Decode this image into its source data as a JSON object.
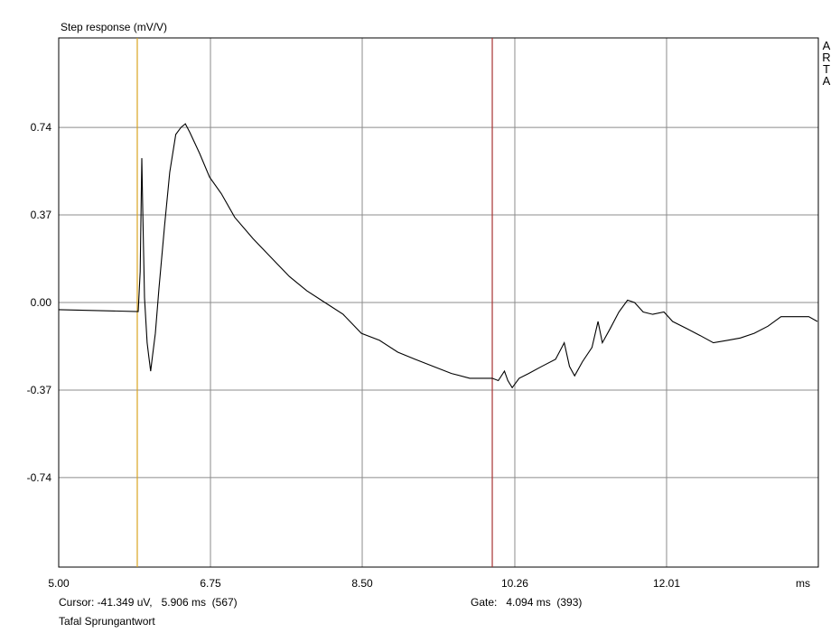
{
  "chart_data": {
    "type": "line",
    "title": "Step response (mV/V)",
    "x_label": "ms",
    "xlim": [
      5.0,
      13.76
    ],
    "ylim": [
      -1.118,
      1.118
    ],
    "xticks": [
      {
        "value": 5.0,
        "label": "5.00"
      },
      6.75,
      {
        "value": 8.5,
        "label": "8.50"
      },
      10.26,
      12.01
    ],
    "yticks": [
      0.74,
      0.37,
      {
        "value": 0,
        "label": "0.00"
      },
      -0.37,
      -0.74
    ],
    "grid": true,
    "color": "#000000",
    "x": [
      5.0,
      5.917,
      5.94,
      5.958,
      5.969,
      5.99,
      6.02,
      6.04,
      6.06,
      6.08,
      6.115,
      6.156,
      6.22,
      6.28,
      6.35,
      6.41,
      6.46,
      6.51,
      6.625,
      6.74,
      6.875,
      7.03,
      7.24,
      7.45,
      7.66,
      7.86,
      8.07,
      8.28,
      8.49,
      8.7,
      8.91,
      9.11,
      9.32,
      9.53,
      9.74,
      9.9,
      10.0,
      10.07,
      10.14,
      10.18,
      10.23,
      10.31,
      10.42,
      10.57,
      10.73,
      10.83,
      10.89,
      10.95,
      11.04,
      11.15,
      11.22,
      11.27,
      11.36,
      11.46,
      11.56,
      11.64,
      11.74,
      11.85,
      11.98,
      12.08,
      12.24,
      12.4,
      12.55,
      12.71,
      12.86,
      13.02,
      13.18,
      13.33,
      13.49,
      13.65,
      13.75
    ],
    "values": [
      -0.03,
      -0.038,
      0.13,
      0.61,
      0.4,
      0.02,
      -0.17,
      -0.23,
      -0.29,
      -0.23,
      -0.13,
      0.06,
      0.32,
      0.55,
      0.71,
      0.74,
      0.755,
      0.72,
      0.63,
      0.53,
      0.46,
      0.36,
      0.27,
      0.19,
      0.11,
      0.05,
      0.0,
      -0.05,
      -0.13,
      -0.16,
      -0.21,
      -0.24,
      -0.27,
      -0.3,
      -0.32,
      -0.32,
      -0.32,
      -0.33,
      -0.29,
      -0.33,
      -0.36,
      -0.32,
      -0.3,
      -0.27,
      -0.24,
      -0.17,
      -0.27,
      -0.31,
      -0.25,
      -0.19,
      -0.08,
      -0.17,
      -0.11,
      -0.04,
      0.01,
      0.0,
      -0.04,
      -0.05,
      -0.04,
      -0.08,
      -0.11,
      -0.14,
      -0.17,
      -0.16,
      -0.15,
      -0.13,
      -0.1,
      -0.06,
      -0.06,
      -0.06,
      -0.08
    ],
    "cursor": {
      "x": 5.906,
      "color": "#d9a320"
    },
    "gate": {
      "x": 10.0,
      "color": "#a83232"
    },
    "cursor_text": "Cursor: -41.349 uV,   5.906 ms  (567)",
    "gate_text": "Gate:   4.094 ms  (393)",
    "footer": "Tafal Sprungantwort",
    "watermark": "ARTA"
  }
}
